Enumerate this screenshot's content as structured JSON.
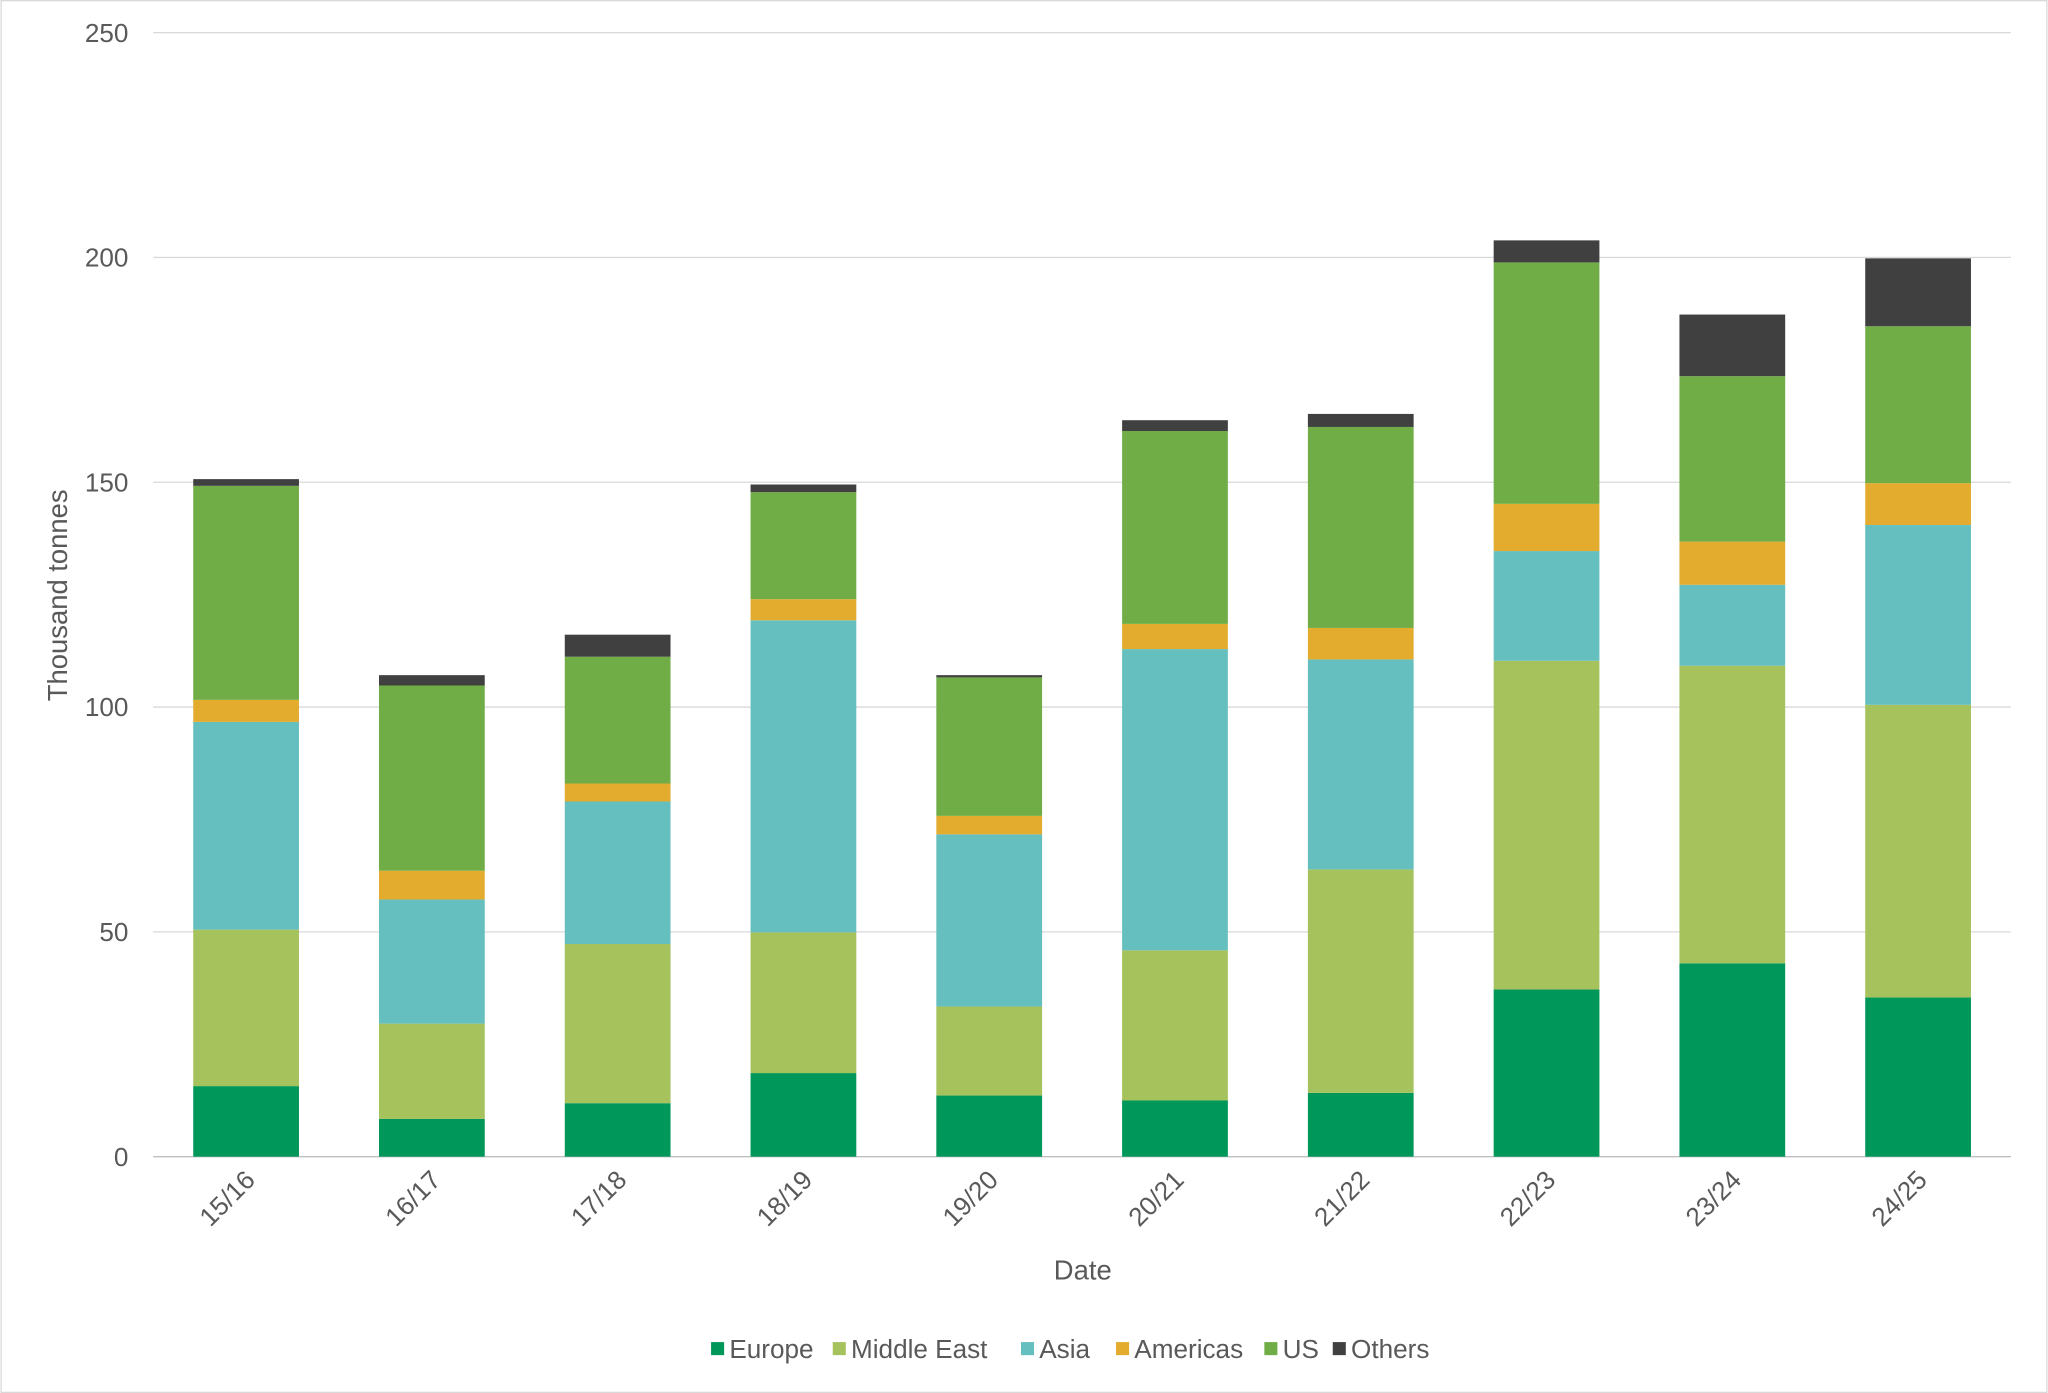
{
  "chart_data": {
    "type": "bar",
    "stacked": true,
    "title": "",
    "xlabel": "Date",
    "ylabel": "Thousand tonnes",
    "ylim": [
      0,
      250
    ],
    "yticks": [
      0,
      50,
      100,
      150,
      200,
      250
    ],
    "grid": true,
    "legend_position": "bottom",
    "categories": [
      "15/16",
      "16/17",
      "17/18",
      "18/19",
      "19/20",
      "20/21",
      "21/22",
      "22/23",
      "23/24",
      "24/25"
    ],
    "series": [
      {
        "name": "Europe",
        "color": "#00985a",
        "values": [
          15.7,
          8.4,
          11.9,
          18.6,
          13.6,
          12.5,
          14.2,
          37.2,
          43.0,
          35.4
        ]
      },
      {
        "name": "Middle East",
        "color": "#a5c25c",
        "values": [
          34.8,
          21.2,
          35.4,
          31.3,
          19.8,
          33.4,
          49.7,
          73.1,
          66.2,
          65.1
        ]
      },
      {
        "name": "Asia",
        "color": "#66bfbf",
        "values": [
          46.2,
          27.6,
          31.7,
          69.4,
          38.3,
          67.0,
          46.7,
          24.4,
          18.0,
          40.0
        ]
      },
      {
        "name": "Americas",
        "color": "#e3ac2f",
        "values": [
          4.9,
          6.4,
          4.0,
          4.7,
          4.1,
          5.6,
          7.0,
          10.5,
          9.6,
          9.3
        ]
      },
      {
        "name": "US",
        "color": "#70ad47",
        "values": [
          47.6,
          41.2,
          28.2,
          23.8,
          30.8,
          42.9,
          44.7,
          53.7,
          36.8,
          34.9
        ]
      },
      {
        "name": "Others",
        "color": "#404040",
        "values": [
          1.5,
          2.3,
          4.9,
          1.7,
          0.5,
          2.4,
          2.9,
          4.9,
          13.7,
          15.1
        ]
      }
    ]
  }
}
